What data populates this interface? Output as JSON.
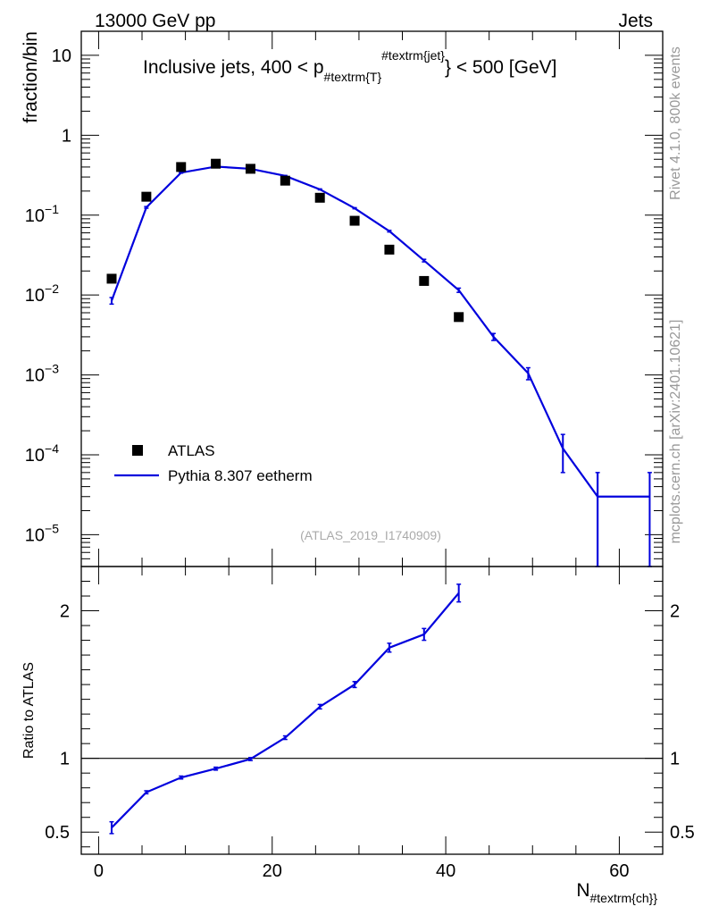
{
  "header": {
    "left": "13000 GeV pp",
    "right": "Jets"
  },
  "side_labels": {
    "rivet": "Rivet 4.1.0,  800k events",
    "mcplots": "mcplots.cern.ch [arXiv:2401.10621]"
  },
  "chart_data": [
    {
      "type": "line",
      "title": {
        "prefix": "Inclusive jets, 400 < p",
        "sub": "#textrm{T}",
        "sup": "#textrm{jet}",
        "suffix": "} < 500 [GeV]"
      },
      "ylabel": "fraction/bin",
      "yscale": "log",
      "ylim": [
        4e-06,
        20
      ],
      "xlim": [
        -2,
        65
      ],
      "y_ticks": [
        {
          "value": 10,
          "base": "10",
          "exp": ""
        },
        {
          "value": 1,
          "base": "1",
          "exp": ""
        },
        {
          "value": 0.1,
          "base": "10",
          "exp": "−1"
        },
        {
          "value": 0.01,
          "base": "10",
          "exp": "−2"
        },
        {
          "value": 0.001,
          "base": "10",
          "exp": "−3"
        },
        {
          "value": 0.0001,
          "base": "10",
          "exp": "−4"
        },
        {
          "value": 1e-05,
          "base": "10",
          "exp": "−5"
        }
      ],
      "legend": {
        "position": "bottom-left",
        "entries": [
          {
            "label": "ATLAS",
            "marker": "square",
            "color": "#000000"
          },
          {
            "label": "Pythia 8.307 eetherm",
            "marker": "line",
            "color": "#0000dd"
          }
        ]
      },
      "watermark": "(ATLAS_2019_I1740909)",
      "series": [
        {
          "name": "ATLAS",
          "style": "markers",
          "color": "#000000",
          "x": [
            1.5,
            5.5,
            9.5,
            13.5,
            17.5,
            21.5,
            25.5,
            29.5,
            33.5,
            37.5,
            41.5
          ],
          "y": [
            0.016,
            0.17,
            0.4,
            0.44,
            0.38,
            0.27,
            0.165,
            0.085,
            0.037,
            0.015,
            0.0053
          ]
        },
        {
          "name": "Pythia 8.307 eetherm",
          "style": "line",
          "color": "#0000dd",
          "x_edges": [
            -0.5,
            3.5,
            7.5,
            11.5,
            15.5,
            19.5,
            23.5,
            27.5,
            31.5,
            35.5,
            39.5,
            43.5,
            47.5,
            51.5,
            55.5,
            59.5,
            63.5
          ],
          "x": [
            1.5,
            5.5,
            9.5,
            13.5,
            17.5,
            21.5,
            25.5,
            29.5,
            33.5,
            37.5,
            41.5,
            45.5,
            49.5,
            53.5,
            57.5,
            61.5
          ],
          "y": [
            0.0085,
            0.125,
            0.34,
            0.405,
            0.38,
            0.31,
            0.21,
            0.122,
            0.063,
            0.027,
            0.0115,
            0.003,
            0.00105,
            0.00012,
            3e-05,
            3e-05
          ],
          "yerr": [
            0.0008,
            0.003,
            0.005,
            0.005,
            0.005,
            0.004,
            0.003,
            0.002,
            0.0015,
            0.001,
            0.0007,
            0.0003,
            0.00018,
            6e-05,
            3e-05,
            3e-05
          ]
        }
      ]
    },
    {
      "type": "line",
      "ylabel": "Ratio to ATLAS",
      "xlabel": {
        "base": "N",
        "sub": "#textrm{ch}}"
      },
      "ylim": [
        0.35,
        2.3
      ],
      "xlim": [
        -2,
        65
      ],
      "y_ticks": [
        0.5,
        1,
        2
      ],
      "x_ticks": [
        0,
        20,
        40,
        60
      ],
      "reference_line": 1,
      "series": [
        {
          "name": "Pythia 8.307 eetherm / ATLAS",
          "color": "#0000dd",
          "x": [
            1.5,
            5.5,
            9.5,
            13.5,
            17.5,
            21.5,
            25.5,
            29.5,
            33.5,
            37.5,
            41.5
          ],
          "y": [
            0.53,
            0.77,
            0.87,
            0.93,
            0.995,
            1.14,
            1.35,
            1.5,
            1.75,
            1.84,
            2.12
          ],
          "yerr": [
            0.04,
            0.01,
            0.01,
            0.01,
            0.01,
            0.012,
            0.015,
            0.02,
            0.03,
            0.04,
            0.06
          ]
        }
      ]
    }
  ]
}
